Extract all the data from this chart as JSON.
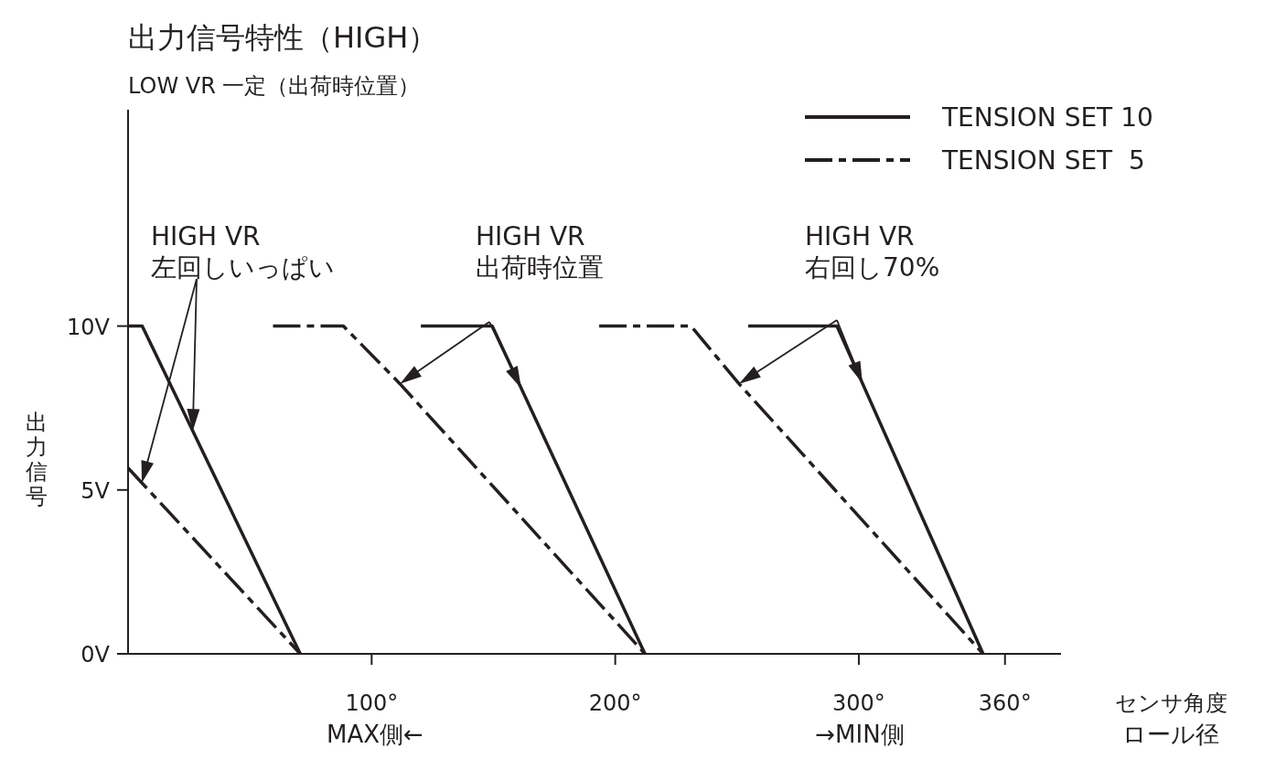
{
  "chart_data": {
    "type": "line",
    "title": "出力信号特性（HIGH）",
    "subtitle": "LOW VR 一定（出荷時位置）",
    "xlabel": "センサ角度",
    "ylabel": "出力信号",
    "series": [
      {
        "name": "TENSION SET 10",
        "color": "#231f20",
        "line_style": "solid",
        "x": [
          0,
          5.8,
          70.7,
          null,
          120.2,
          149.5,
          212.2,
          null,
          254.6,
          291,
          351
        ],
        "values": [
          10,
          10,
          0,
          null,
          10,
          10,
          0,
          null,
          10,
          10,
          0
        ]
      },
      {
        "name": "TENSION SET  5",
        "color": "#231f20",
        "line_style": "dashed",
        "x": [
          0,
          70.7,
          null,
          59.5,
          88.4,
          111.6,
          212.2,
          null,
          193.4,
          231.1,
          250.8,
          351
        ],
        "values": [
          5.67,
          0,
          null,
          10,
          10,
          8.24,
          0,
          null,
          10,
          10,
          8.24,
          0
        ]
      }
    ],
    "annotations": [
      "HIGH VR\n左回しいっぱい",
      "HIGH VR\n出荷時位置",
      "HIGH VR\n右回し70%",
      "MAX側←",
      "→MIN側",
      "ロール径"
    ],
    "xlim": [
      0,
      383
    ],
    "ylim": [
      0,
      16.6
    ],
    "xticks": [
      {
        "value": 100,
        "label": "100°"
      },
      {
        "value": 200,
        "label": "200°"
      },
      {
        "value": 300,
        "label": "300°"
      },
      {
        "value": 360,
        "label": "360°"
      }
    ],
    "yticks": [
      {
        "value": 0,
        "label": "0V"
      },
      {
        "value": 5,
        "label": "5V"
      },
      {
        "value": 10,
        "label": "10V"
      }
    ],
    "grid": false,
    "legend": "top right"
  }
}
